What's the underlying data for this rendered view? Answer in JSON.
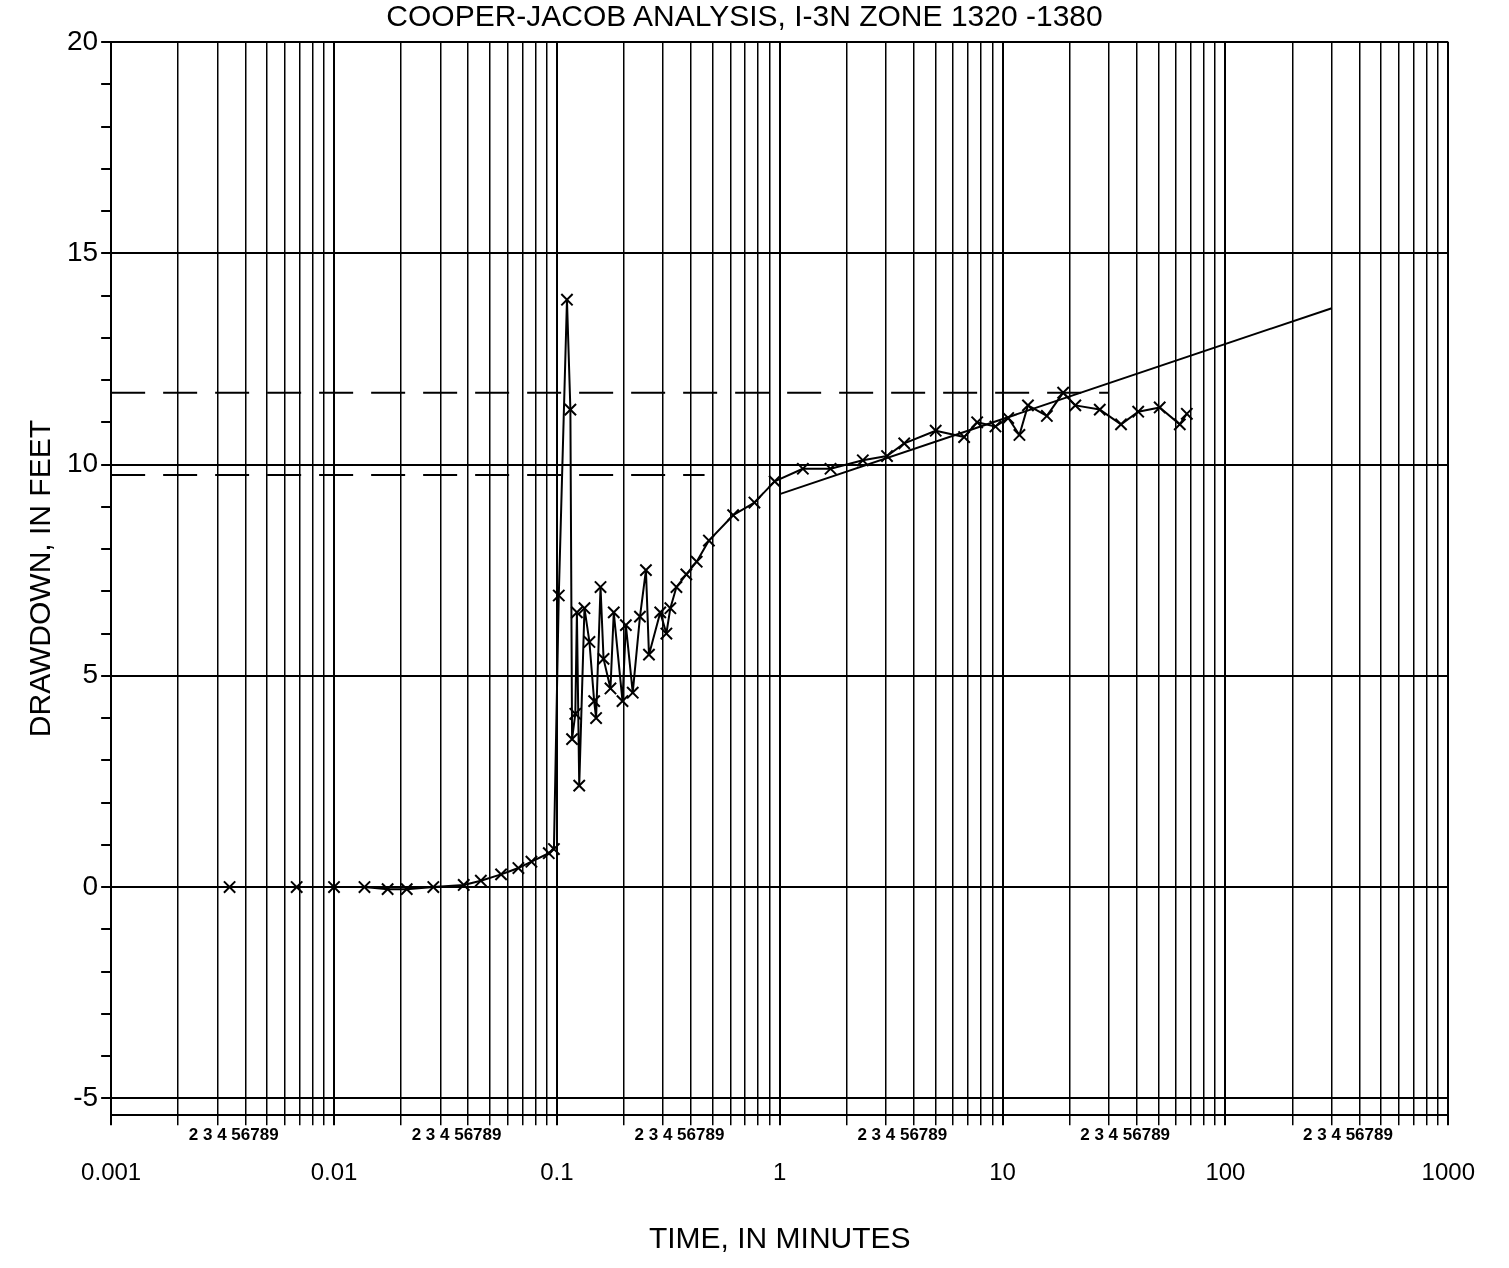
{
  "chart_data": {
    "type": "line",
    "title": "COOPER-JACOB ANALYSIS, I-3N ZONE 1320 -1380",
    "xlabel": "TIME, IN MINUTES",
    "ylabel": "DRAWDOWN, IN FEET",
    "annotations": [
      "2 3 4 56789",
      "2 3 4 56789",
      "2 3 4 56789",
      "2 3 4 56789",
      "2 3 4 56789",
      "2 3 4 56789"
    ],
    "xlim": [
      0.001,
      1000
    ],
    "ylim": [
      -5.4,
      20
    ],
    "log": "x",
    "grid": true,
    "legend": false,
    "xticks": [
      {
        "value": 0.001,
        "label": "0.001"
      },
      {
        "value": 0.002,
        "label": null
      },
      {
        "value": 0.003,
        "label": null
      },
      {
        "value": 0.004,
        "label": null
      },
      {
        "value": 0.005,
        "label": null
      },
      {
        "value": 0.006,
        "label": null
      },
      {
        "value": 0.007,
        "label": null
      },
      {
        "value": 0.008,
        "label": null
      },
      {
        "value": 0.009,
        "label": null
      },
      {
        "value": 0.01,
        "label": "0.01"
      },
      {
        "value": 0.02,
        "label": null
      },
      {
        "value": 0.03,
        "label": null
      },
      {
        "value": 0.04,
        "label": null
      },
      {
        "value": 0.05,
        "label": null
      },
      {
        "value": 0.06,
        "label": null
      },
      {
        "value": 0.07,
        "label": null
      },
      {
        "value": 0.08,
        "label": null
      },
      {
        "value": 0.09,
        "label": null
      },
      {
        "value": 0.1,
        "label": "0.1"
      },
      {
        "value": 0.2,
        "label": null
      },
      {
        "value": 0.3,
        "label": null
      },
      {
        "value": 0.4,
        "label": null
      },
      {
        "value": 0.5,
        "label": null
      },
      {
        "value": 0.6,
        "label": null
      },
      {
        "value": 0.7,
        "label": null
      },
      {
        "value": 0.8,
        "label": null
      },
      {
        "value": 0.9,
        "label": null
      },
      {
        "value": 1,
        "label": "1"
      },
      {
        "value": 2,
        "label": null
      },
      {
        "value": 3,
        "label": null
      },
      {
        "value": 4,
        "label": null
      },
      {
        "value": 5,
        "label": null
      },
      {
        "value": 6,
        "label": null
      },
      {
        "value": 7,
        "label": null
      },
      {
        "value": 8,
        "label": null
      },
      {
        "value": 9,
        "label": null
      },
      {
        "value": 10,
        "label": "10"
      },
      {
        "value": 20,
        "label": null
      },
      {
        "value": 30,
        "label": null
      },
      {
        "value": 40,
        "label": null
      },
      {
        "value": 50,
        "label": null
      },
      {
        "value": 60,
        "label": null
      },
      {
        "value": 70,
        "label": null
      },
      {
        "value": 80,
        "label": null
      },
      {
        "value": 90,
        "label": null
      },
      {
        "value": 100,
        "label": "100"
      },
      {
        "value": 200,
        "label": null
      },
      {
        "value": 300,
        "label": null
      },
      {
        "value": 400,
        "label": null
      },
      {
        "value": 500,
        "label": null
      },
      {
        "value": 600,
        "label": null
      },
      {
        "value": 700,
        "label": null
      },
      {
        "value": 800,
        "label": null
      },
      {
        "value": 900,
        "label": null
      },
      {
        "value": 1000,
        "label": "1000"
      }
    ],
    "yticks": [
      -5,
      {
        "value": -4,
        "label": null
      },
      {
        "value": -3,
        "label": null
      },
      {
        "value": -2,
        "label": null
      },
      {
        "value": -1,
        "label": null
      },
      0,
      {
        "value": 1,
        "label": null
      },
      {
        "value": 2,
        "label": null
      },
      {
        "value": 3,
        "label": null
      },
      {
        "value": 4,
        "label": null
      },
      5,
      {
        "value": 6,
        "label": null
      },
      {
        "value": 7,
        "label": null
      },
      {
        "value": 8,
        "label": null
      },
      {
        "value": 9,
        "label": null
      },
      10,
      {
        "value": 11,
        "label": null
      },
      {
        "value": 12,
        "label": null
      },
      {
        "value": 13,
        "label": null
      },
      {
        "value": 14,
        "label": null
      },
      15,
      {
        "value": 16,
        "label": null
      },
      {
        "value": 17,
        "label": null
      },
      {
        "value": 18,
        "label": null
      },
      {
        "value": 19,
        "label": null
      },
      20
    ],
    "series": [
      {
        "color": "#000000",
        "marker": "cross",
        "line_style": "solid",
        "x": [
          0.0034,
          0.0068,
          0.01,
          0.0137,
          0.0174,
          0.0212,
          0.0279,
          0.0382,
          0.0456,
          0.0562,
          0.0672,
          0.0769,
          0.092,
          0.097,
          0.102,
          0.111,
          0.115,
          0.117,
          0.121,
          0.123,
          0.126,
          0.133,
          0.14,
          0.147,
          0.15,
          0.157,
          0.162,
          0.174,
          0.18,
          0.197,
          0.204,
          0.219,
          0.236,
          0.251,
          0.259,
          0.291,
          0.31,
          0.323,
          0.344,
          0.381,
          0.424,
          0.481,
          0.618,
          0.77,
          0.949,
          1.27,
          1.69,
          2.36,
          3.03,
          3.62,
          5.01,
          6.72,
          7.69,
          9.29,
          10.6,
          11.9,
          13,
          15.8,
          18.7,
          21.2,
          27.3,
          34,
          40.6,
          50.7,
          62.4,
          67.1
        ],
        "values": [
          0,
          0,
          0,
          0,
          -0.05,
          -0.05,
          0,
          0.05,
          0.15,
          0.3,
          0.45,
          0.6,
          0.8,
          0.9,
          6.9,
          13.9,
          11.3,
          3.5,
          4.1,
          6.5,
          2.4,
          6.6,
          5.8,
          4.4,
          4,
          7.1,
          5.4,
          4.7,
          6.5,
          4.4,
          6.2,
          4.6,
          6.4,
          7.5,
          5.5,
          6.5,
          6,
          6.6,
          7.1,
          7.4,
          7.7,
          8.2,
          8.8,
          9.1,
          9.6,
          9.9,
          9.9,
          10.1,
          10.2,
          10.5,
          10.8,
          10.65,
          11,
          10.9,
          11.1,
          10.7,
          11.4,
          11.15,
          11.7,
          11.4,
          11.3,
          10.95,
          11.25,
          11.35,
          10.95,
          11.2
        ]
      },
      {
        "color": "#000000",
        "marker": "none",
        "line_style": "solid",
        "x": [
          1,
          300
        ],
        "values": [
          9.3,
          13.7
        ]
      },
      {
        "color": "#000000",
        "marker": "none",
        "line_style": "dashed",
        "x": [
          0.001,
          30
        ],
        "values": [
          11.7,
          11.7
        ]
      },
      {
        "color": "#000000",
        "marker": "none",
        "line_style": "dashed",
        "x": [
          0.001,
          0.46
        ],
        "values": [
          9.75,
          9.75
        ]
      }
    ]
  }
}
